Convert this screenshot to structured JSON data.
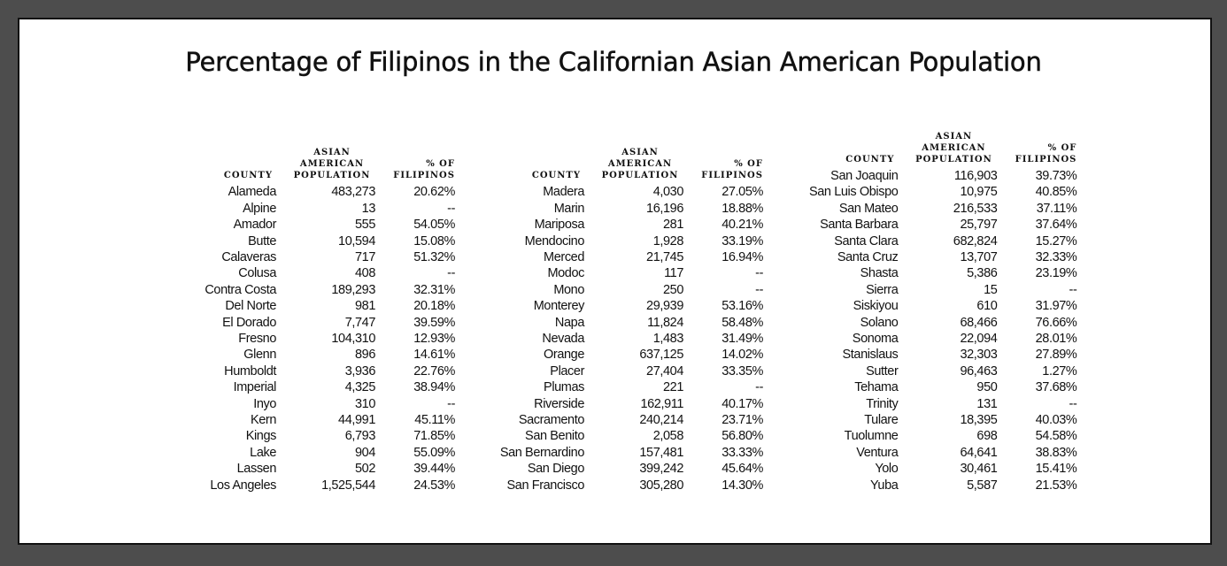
{
  "title": "Percentage of Filipinos in the Californian Asian American Population",
  "headers": {
    "county": "COUNTY",
    "population": [
      "ASIAN",
      "AMERICAN",
      "POPULATION"
    ],
    "filipinos": [
      "% OF",
      "FILIPINOS"
    ]
  },
  "columns": [
    {
      "rows": [
        {
          "county": "Alameda",
          "population": "483,273",
          "pct": "20.62%"
        },
        {
          "county": "Alpine",
          "population": "13",
          "pct": "--"
        },
        {
          "county": "Amador",
          "population": "555",
          "pct": "54.05%"
        },
        {
          "county": "Butte",
          "population": "10,594",
          "pct": "15.08%"
        },
        {
          "county": "Calaveras",
          "population": "717",
          "pct": "51.32%"
        },
        {
          "county": "Colusa",
          "population": "408",
          "pct": "--"
        },
        {
          "county": "Contra Costa",
          "population": "189,293",
          "pct": "32.31%"
        },
        {
          "county": "Del Norte",
          "population": "981",
          "pct": "20.18%"
        },
        {
          "county": "El Dorado",
          "population": "7,747",
          "pct": "39.59%"
        },
        {
          "county": "Fresno",
          "population": "104,310",
          "pct": "12.93%"
        },
        {
          "county": "Glenn",
          "population": "896",
          "pct": "14.61%"
        },
        {
          "county": "Humboldt",
          "population": "3,936",
          "pct": "22.76%"
        },
        {
          "county": "Imperial",
          "population": "4,325",
          "pct": "38.94%"
        },
        {
          "county": "Inyo",
          "population": "310",
          "pct": "--"
        },
        {
          "county": "Kern",
          "population": "44,991",
          "pct": "45.11%"
        },
        {
          "county": "Kings",
          "population": "6,793",
          "pct": "71.85%"
        },
        {
          "county": "Lake",
          "population": "904",
          "pct": "55.09%"
        },
        {
          "county": "Lassen",
          "population": "502",
          "pct": "39.44%"
        },
        {
          "county": "Los Angeles",
          "population": "1,525,544",
          "pct": "24.53%"
        }
      ]
    },
    {
      "rows": [
        {
          "county": "Madera",
          "population": "4,030",
          "pct": "27.05%"
        },
        {
          "county": "Marin",
          "population": "16,196",
          "pct": "18.88%"
        },
        {
          "county": "Mariposa",
          "population": "281",
          "pct": "40.21%"
        },
        {
          "county": "Mendocino",
          "population": "1,928",
          "pct": "33.19%"
        },
        {
          "county": "Merced",
          "population": "21,745",
          "pct": "16.94%"
        },
        {
          "county": "Modoc",
          "population": "117",
          "pct": "--"
        },
        {
          "county": "Mono",
          "population": "250",
          "pct": "--"
        },
        {
          "county": "Monterey",
          "population": "29,939",
          "pct": "53.16%"
        },
        {
          "county": "Napa",
          "population": "11,824",
          "pct": "58.48%"
        },
        {
          "county": "Nevada",
          "population": "1,483",
          "pct": "31.49%"
        },
        {
          "county": "Orange",
          "population": "637,125",
          "pct": "14.02%"
        },
        {
          "county": "Placer",
          "population": "27,404",
          "pct": "33.35%"
        },
        {
          "county": "Plumas",
          "population": "221",
          "pct": "--"
        },
        {
          "county": "Riverside",
          "population": "162,911",
          "pct": "40.17%"
        },
        {
          "county": "Sacramento",
          "population": "240,214",
          "pct": "23.71%"
        },
        {
          "county": "San Benito",
          "population": "2,058",
          "pct": "56.80%"
        },
        {
          "county": "San Bernardino",
          "population": "157,481",
          "pct": "33.33%"
        },
        {
          "county": "San Diego",
          "population": "399,242",
          "pct": "45.64%"
        },
        {
          "county": "San Francisco",
          "population": "305,280",
          "pct": "14.30%"
        }
      ]
    },
    {
      "rows": [
        {
          "county": "San Joaquin",
          "population": "116,903",
          "pct": "39.73%"
        },
        {
          "county": "San Luis Obispo",
          "population": "10,975",
          "pct": "40.85%"
        },
        {
          "county": "San Mateo",
          "population": "216,533",
          "pct": "37.11%"
        },
        {
          "county": "Santa Barbara",
          "population": "25,797",
          "pct": "37.64%"
        },
        {
          "county": "Santa Clara",
          "population": "682,824",
          "pct": "15.27%"
        },
        {
          "county": "Santa Cruz",
          "population": "13,707",
          "pct": "32.33%"
        },
        {
          "county": "Shasta",
          "population": "5,386",
          "pct": "23.19%"
        },
        {
          "county": "Sierra",
          "population": "15",
          "pct": "--"
        },
        {
          "county": "Siskiyou",
          "population": "610",
          "pct": "31.97%"
        },
        {
          "county": "Solano",
          "population": "68,466",
          "pct": "76.66%"
        },
        {
          "county": "Sonoma",
          "population": "22,094",
          "pct": "28.01%"
        },
        {
          "county": "Stanislaus",
          "population": "32,303",
          "pct": "27.89%"
        },
        {
          "county": "Sutter",
          "population": "96,463",
          "pct": "1.27%"
        },
        {
          "county": "Tehama",
          "population": "950",
          "pct": "37.68%"
        },
        {
          "county": "Trinity",
          "population": "131",
          "pct": "--"
        },
        {
          "county": "Tulare",
          "population": "18,395",
          "pct": "40.03%"
        },
        {
          "county": "Tuolumne",
          "population": "698",
          "pct": "54.58%"
        },
        {
          "county": "Ventura",
          "population": "64,641",
          "pct": "38.83%"
        },
        {
          "county": "Yolo",
          "population": "30,461",
          "pct": "15.41%"
        },
        {
          "county": "Yuba",
          "population": "5,587",
          "pct": "21.53%"
        }
      ]
    }
  ]
}
